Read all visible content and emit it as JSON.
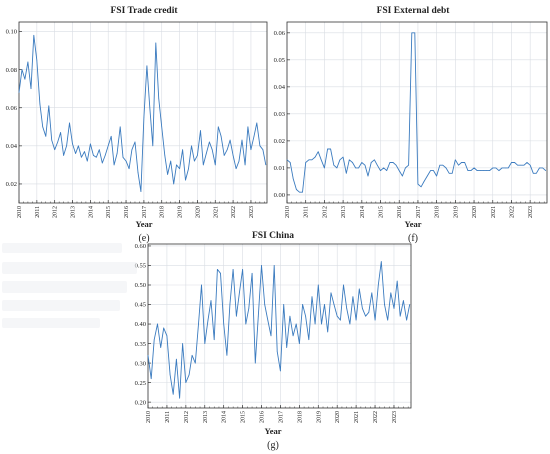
{
  "panels": [
    {
      "title": "FSI Trade credit",
      "xlabel": "Year",
      "sublabel": "(e)"
    },
    {
      "title": "FSI External debt",
      "xlabel": "Year",
      "sublabel": "(f)"
    },
    {
      "title": "FSI China",
      "xlabel": "Year",
      "sublabel": "(g)"
    }
  ],
  "colors": {
    "line": "#3b7bbf",
    "grid": "#d9dde3",
    "frame": "#333333"
  },
  "chart_data": [
    {
      "type": "line",
      "title": "FSI Trade credit",
      "xlabel": "Year",
      "ylabel": "",
      "xlim": [
        2010,
        2023.9
      ],
      "ylim": [
        0.01,
        0.105
      ],
      "xticks": [
        "2010",
        "2011",
        "2012",
        "2013",
        "2014",
        "2015",
        "2016",
        "2017",
        "2018",
        "2019",
        "2020",
        "2021",
        "2022",
        "2023"
      ],
      "yticks": [
        "0.02",
        "0.04",
        "0.06",
        "0.08",
        "0.10"
      ],
      "ytick_values": [
        0.02,
        0.04,
        0.06,
        0.08,
        0.1
      ],
      "grid": true,
      "series": [
        {
          "x": [
            2010,
            2010.17,
            2010.33,
            2010.5,
            2010.67,
            2010.83,
            2011,
            2011.17,
            2011.33,
            2011.5,
            2011.67,
            2011.83,
            2012,
            2012.17,
            2012.33,
            2012.5,
            2012.67,
            2012.83,
            2013,
            2013.17,
            2013.33,
            2013.5,
            2013.67,
            2013.83,
            2014,
            2014.17,
            2014.33,
            2014.5,
            2014.67,
            2014.83,
            2015,
            2015.17,
            2015.33,
            2015.5,
            2015.67,
            2015.83,
            2016,
            2016.17,
            2016.33,
            2016.5,
            2016.67,
            2016.83,
            2017,
            2017.17,
            2017.33,
            2017.5,
            2017.67,
            2017.83,
            2018,
            2018.17,
            2018.33,
            2018.5,
            2018.67,
            2018.83,
            2019,
            2019.17,
            2019.33,
            2019.5,
            2019.67,
            2019.83,
            2020,
            2020.17,
            2020.33,
            2020.5,
            2020.67,
            2020.83,
            2021,
            2021.17,
            2021.33,
            2021.5,
            2021.67,
            2021.83,
            2022,
            2022.17,
            2022.33,
            2022.5,
            2022.67,
            2022.83,
            2023,
            2023.17,
            2023.33,
            2023.5,
            2023.67,
            2023.83
          ],
          "y": [
            0.068,
            0.08,
            0.075,
            0.084,
            0.07,
            0.098,
            0.085,
            0.062,
            0.05,
            0.045,
            0.061,
            0.043,
            0.038,
            0.042,
            0.047,
            0.035,
            0.04,
            0.052,
            0.041,
            0.036,
            0.04,
            0.034,
            0.037,
            0.032,
            0.041,
            0.035,
            0.034,
            0.038,
            0.031,
            0.035,
            0.04,
            0.045,
            0.03,
            0.036,
            0.05,
            0.034,
            0.032,
            0.028,
            0.038,
            0.042,
            0.026,
            0.016,
            0.055,
            0.082,
            0.06,
            0.04,
            0.094,
            0.065,
            0.05,
            0.035,
            0.025,
            0.032,
            0.02,
            0.03,
            0.028,
            0.038,
            0.022,
            0.028,
            0.04,
            0.032,
            0.035,
            0.048,
            0.03,
            0.036,
            0.042,
            0.038,
            0.03,
            0.05,
            0.045,
            0.035,
            0.038,
            0.043,
            0.035,
            0.028,
            0.032,
            0.043,
            0.03,
            0.05,
            0.038,
            0.045,
            0.052,
            0.04,
            0.038,
            0.03
          ]
        }
      ]
    },
    {
      "type": "line",
      "title": "FSI External debt",
      "xlabel": "Year",
      "ylabel": "",
      "xlim": [
        2010,
        2023.9
      ],
      "ylim": [
        -0.003,
        0.064
      ],
      "xticks": [
        "2010",
        "2011",
        "2012",
        "2013",
        "2014",
        "2015",
        "2016",
        "2017",
        "2018",
        "2019",
        "2020",
        "2021",
        "2022",
        "2023"
      ],
      "yticks": [
        "0.00",
        "0.01",
        "0.02",
        "0.03",
        "0.04",
        "0.05",
        "0.06"
      ],
      "ytick_values": [
        0.0,
        0.01,
        0.02,
        0.03,
        0.04,
        0.05,
        0.06
      ],
      "grid": true,
      "series": [
        {
          "x": [
            2010,
            2010.17,
            2010.33,
            2010.5,
            2010.67,
            2010.83,
            2011,
            2011.17,
            2011.33,
            2011.5,
            2011.67,
            2011.83,
            2012,
            2012.17,
            2012.33,
            2012.5,
            2012.67,
            2012.83,
            2013,
            2013.17,
            2013.33,
            2013.5,
            2013.67,
            2013.83,
            2014,
            2014.17,
            2014.33,
            2014.5,
            2014.67,
            2014.83,
            2015,
            2015.17,
            2015.33,
            2015.5,
            2015.67,
            2015.83,
            2016,
            2016.17,
            2016.33,
            2016.5,
            2016.67,
            2016.83,
            2017,
            2017.17,
            2017.33,
            2017.5,
            2017.67,
            2017.83,
            2018,
            2018.17,
            2018.33,
            2018.5,
            2018.67,
            2018.83,
            2019,
            2019.17,
            2019.33,
            2019.5,
            2019.67,
            2019.83,
            2020,
            2020.17,
            2020.33,
            2020.5,
            2020.67,
            2020.83,
            2021,
            2021.17,
            2021.33,
            2021.5,
            2021.67,
            2021.83,
            2022,
            2022.17,
            2022.33,
            2022.5,
            2022.67,
            2022.83,
            2023,
            2023.17,
            2023.33,
            2023.5,
            2023.67,
            2023.83
          ],
          "y": [
            0.013,
            0.012,
            0.006,
            0.002,
            0.001,
            0.001,
            0.012,
            0.013,
            0.013,
            0.014,
            0.016,
            0.013,
            0.01,
            0.017,
            0.017,
            0.011,
            0.01,
            0.013,
            0.014,
            0.008,
            0.013,
            0.012,
            0.01,
            0.01,
            0.012,
            0.011,
            0.007,
            0.012,
            0.013,
            0.011,
            0.009,
            0.01,
            0.009,
            0.012,
            0.012,
            0.011,
            0.009,
            0.007,
            0.01,
            0.011,
            0.06,
            0.06,
            0.004,
            0.003,
            0.005,
            0.007,
            0.009,
            0.009,
            0.007,
            0.011,
            0.011,
            0.01,
            0.008,
            0.008,
            0.013,
            0.011,
            0.012,
            0.012,
            0.009,
            0.009,
            0.01,
            0.009,
            0.009,
            0.009,
            0.009,
            0.009,
            0.01,
            0.01,
            0.009,
            0.01,
            0.01,
            0.01,
            0.012,
            0.012,
            0.011,
            0.011,
            0.011,
            0.012,
            0.011,
            0.008,
            0.008,
            0.01,
            0.01,
            0.009
          ]
        }
      ]
    },
    {
      "type": "line",
      "title": "FSI China",
      "xlabel": "Year",
      "ylabel": "",
      "xlim": [
        2010,
        2023.9
      ],
      "ylim": [
        0.185,
        0.605
      ],
      "xticks": [
        "2010",
        "2011",
        "2012",
        "2013",
        "2014",
        "2015",
        "2016",
        "2017",
        "2018",
        "2019",
        "2020",
        "2021",
        "2022",
        "2023"
      ],
      "yticks": [
        "0.20",
        "0.25",
        "0.30",
        "0.35",
        "0.40",
        "0.45",
        "0.50",
        "0.55",
        "0.60"
      ],
      "ytick_values": [
        0.2,
        0.25,
        0.3,
        0.35,
        0.4,
        0.45,
        0.5,
        0.55,
        0.6
      ],
      "grid": true,
      "series": [
        {
          "x": [
            2010,
            2010.17,
            2010.33,
            2010.5,
            2010.67,
            2010.83,
            2011,
            2011.17,
            2011.33,
            2011.5,
            2011.67,
            2011.83,
            2012,
            2012.17,
            2012.33,
            2012.5,
            2012.67,
            2012.83,
            2013,
            2013.17,
            2013.33,
            2013.5,
            2013.67,
            2013.83,
            2014,
            2014.17,
            2014.33,
            2014.5,
            2014.67,
            2014.83,
            2015,
            2015.17,
            2015.33,
            2015.5,
            2015.67,
            2015.83,
            2016,
            2016.17,
            2016.33,
            2016.5,
            2016.67,
            2016.83,
            2017,
            2017.17,
            2017.33,
            2017.5,
            2017.67,
            2017.83,
            2018,
            2018.17,
            2018.33,
            2018.5,
            2018.67,
            2018.83,
            2019,
            2019.17,
            2019.33,
            2019.5,
            2019.67,
            2019.83,
            2020,
            2020.17,
            2020.33,
            2020.5,
            2020.67,
            2020.83,
            2021,
            2021.17,
            2021.33,
            2021.5,
            2021.67,
            2021.83,
            2022,
            2022.17,
            2022.33,
            2022.5,
            2022.67,
            2022.83,
            2023,
            2023.17,
            2023.33,
            2023.5,
            2023.67,
            2023.83
          ],
          "y": [
            0.32,
            0.26,
            0.36,
            0.4,
            0.34,
            0.39,
            0.37,
            0.27,
            0.22,
            0.31,
            0.21,
            0.35,
            0.25,
            0.27,
            0.32,
            0.3,
            0.4,
            0.5,
            0.35,
            0.41,
            0.46,
            0.36,
            0.54,
            0.53,
            0.4,
            0.32,
            0.45,
            0.54,
            0.42,
            0.48,
            0.54,
            0.4,
            0.44,
            0.53,
            0.3,
            0.42,
            0.55,
            0.45,
            0.41,
            0.37,
            0.55,
            0.33,
            0.28,
            0.45,
            0.34,
            0.42,
            0.37,
            0.4,
            0.35,
            0.45,
            0.42,
            0.36,
            0.47,
            0.4,
            0.5,
            0.4,
            0.45,
            0.38,
            0.48,
            0.45,
            0.42,
            0.41,
            0.5,
            0.44,
            0.4,
            0.47,
            0.41,
            0.49,
            0.44,
            0.42,
            0.43,
            0.48,
            0.41,
            0.5,
            0.56,
            0.45,
            0.41,
            0.48,
            0.44,
            0.51,
            0.42,
            0.46,
            0.41,
            0.45
          ]
        }
      ]
    }
  ]
}
